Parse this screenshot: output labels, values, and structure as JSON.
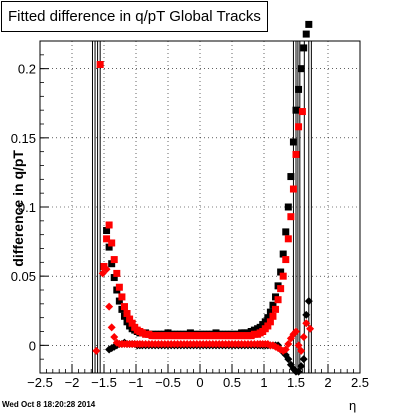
{
  "chart_data": {
    "type": "scatter",
    "title": "Fitted difference in q/pT  Global Tracks",
    "xlabel": "η",
    "ylabel": "difference in q/pT",
    "xlim": [
      -2.5,
      2.5
    ],
    "ylim": [
      -0.02,
      0.22
    ],
    "x_ticks": [
      "−2.5",
      "−2",
      "−1.5",
      "−1",
      "−0.5",
      "0",
      "0.5",
      "1",
      "1.5",
      "2",
      "2.5"
    ],
    "y_ticks": [
      "0",
      "0.05",
      "0.1",
      "0.15",
      "0.2"
    ],
    "grid": true,
    "series": [
      {
        "color": "#000000",
        "marker": "square",
        "x": [
          -1.46,
          -1.42,
          -1.38,
          -1.34,
          -1.3,
          -1.26,
          -1.22,
          -1.18,
          -1.14,
          -1.1,
          -1.06,
          -1.02,
          -0.98,
          -0.94,
          -0.9,
          -0.85,
          -0.8,
          -0.75,
          -0.7,
          -0.65,
          -0.6,
          -0.55,
          -0.5,
          -0.45,
          -0.4,
          -0.35,
          -0.3,
          -0.25,
          -0.2,
          -0.15,
          -0.1,
          -0.05,
          0.0,
          0.05,
          0.1,
          0.15,
          0.2,
          0.25,
          0.3,
          0.35,
          0.4,
          0.45,
          0.5,
          0.55,
          0.6,
          0.65,
          0.7,
          0.75,
          0.8,
          0.85,
          0.9,
          0.94,
          0.98,
          1.02,
          1.06,
          1.1,
          1.14,
          1.18,
          1.22,
          1.26,
          1.3,
          1.34,
          1.38,
          1.42,
          1.46,
          1.5,
          1.54,
          1.58,
          1.62,
          1.66,
          1.7
        ],
        "y": [
          0.083,
          0.071,
          0.059,
          0.049,
          0.04,
          0.032,
          0.026,
          0.021,
          0.017,
          0.014,
          0.012,
          0.011,
          0.01,
          0.009,
          0.009,
          0.009,
          0.008,
          0.008,
          0.008,
          0.008,
          0.008,
          0.008,
          0.009,
          0.008,
          0.008,
          0.008,
          0.008,
          0.008,
          0.008,
          0.009,
          0.008,
          0.008,
          0.008,
          0.008,
          0.008,
          0.008,
          0.008,
          0.009,
          0.008,
          0.008,
          0.008,
          0.008,
          0.008,
          0.008,
          0.008,
          0.009,
          0.009,
          0.009,
          0.01,
          0.011,
          0.012,
          0.013,
          0.015,
          0.017,
          0.02,
          0.024,
          0.029,
          0.035,
          0.043,
          0.053,
          0.066,
          0.082,
          0.1,
          0.122,
          0.147,
          0.17,
          0.185,
          0.2,
          0.215,
          0.225,
          0.232
        ]
      },
      {
        "color": "#000000",
        "marker": "diamond",
        "x": [
          -1.42,
          -1.38,
          -1.34,
          -1.3,
          -1.26,
          -1.22,
          -1.18,
          -1.14,
          -1.1,
          -1.06,
          -1.02,
          -0.98,
          -0.94,
          -0.9,
          -0.85,
          -0.8,
          -0.75,
          -0.7,
          -0.65,
          -0.6,
          -0.55,
          -0.5,
          -0.45,
          -0.4,
          -0.35,
          -0.3,
          -0.25,
          -0.2,
          -0.15,
          -0.1,
          -0.05,
          0.0,
          0.05,
          0.1,
          0.15,
          0.2,
          0.25,
          0.3,
          0.35,
          0.4,
          0.45,
          0.5,
          0.55,
          0.6,
          0.65,
          0.7,
          0.75,
          0.8,
          0.85,
          0.9,
          0.94,
          0.98,
          1.02,
          1.06,
          1.1,
          1.14,
          1.18,
          1.22,
          1.26,
          1.3,
          1.34,
          1.38,
          1.42,
          1.46,
          1.5,
          1.54,
          1.58,
          1.62,
          1.66,
          1.7
        ],
        "y": [
          -0.003,
          -0.002,
          -0.001,
          0.0,
          0.001,
          0.001,
          0.002,
          0.001,
          0.001,
          0.001,
          0.001,
          0.0,
          0.0,
          0.0,
          0.0,
          0.0,
          0.0,
          0.0,
          0.0,
          0.0,
          0.0,
          0.0,
          0.0,
          0.0,
          0.0,
          0.0,
          0.0,
          0.0,
          0.0,
          0.0,
          0.0,
          0.0,
          0.0,
          0.0,
          0.0,
          0.0,
          0.0,
          0.0,
          0.0,
          0.0,
          0.0,
          0.0,
          0.0,
          0.0,
          0.0,
          0.0,
          0.0,
          0.0,
          0.0,
          0.0,
          0.0,
          0.0,
          0.0,
          0.0,
          0.0,
          0.0,
          0.0,
          0.0,
          -0.003,
          -0.005,
          -0.007,
          -0.01,
          -0.014,
          -0.017,
          -0.019,
          -0.019,
          -0.015,
          -0.01,
          0.022,
          0.032
        ]
      },
      {
        "color": "#ff0000",
        "marker": "square",
        "x": [
          -1.56,
          -1.5,
          -1.46,
          -1.42,
          -1.38,
          -1.34,
          -1.3,
          -1.26,
          -1.22,
          -1.18,
          -1.14,
          -1.1,
          -1.06,
          -1.02,
          -0.98,
          -0.94,
          -0.9,
          -0.85,
          -0.8,
          -0.75,
          -0.7,
          -0.65,
          -0.6,
          -0.55,
          -0.5,
          -0.45,
          -0.4,
          -0.35,
          -0.3,
          -0.25,
          -0.2,
          -0.15,
          -0.1,
          -0.05,
          0.0,
          0.05,
          0.1,
          0.15,
          0.2,
          0.25,
          0.3,
          0.35,
          0.4,
          0.45,
          0.5,
          0.55,
          0.6,
          0.65,
          0.7,
          0.75,
          0.8,
          0.85,
          0.9,
          0.94,
          0.98,
          1.02,
          1.06,
          1.1,
          1.14,
          1.18,
          1.22,
          1.26,
          1.3,
          1.34,
          1.38,
          1.42,
          1.46,
          1.5,
          1.54,
          1.6
        ],
        "y": [
          0.203,
          0.057,
          0.077,
          0.087,
          0.074,
          0.062,
          0.052,
          0.042,
          0.035,
          0.028,
          0.023,
          0.019,
          0.016,
          0.013,
          0.011,
          0.01,
          0.009,
          0.008,
          0.008,
          0.007,
          0.007,
          0.007,
          0.007,
          0.007,
          0.007,
          0.007,
          0.007,
          0.007,
          0.007,
          0.007,
          0.007,
          0.007,
          0.007,
          0.007,
          0.007,
          0.007,
          0.007,
          0.007,
          0.007,
          0.007,
          0.007,
          0.007,
          0.007,
          0.007,
          0.007,
          0.007,
          0.007,
          0.007,
          0.007,
          0.007,
          0.007,
          0.008,
          0.008,
          0.009,
          0.01,
          0.012,
          0.014,
          0.017,
          0.021,
          0.026,
          0.033,
          0.041,
          0.05,
          0.062,
          0.077,
          0.093,
          0.113,
          0.138,
          0.158,
          0.169
        ]
      },
      {
        "color": "#ff0000",
        "marker": "diamond",
        "x": [
          -1.62,
          -1.52,
          -1.46,
          -1.42,
          -1.38,
          -1.34,
          -1.3,
          -1.26,
          -1.22,
          -1.18,
          -1.14,
          -1.1,
          -1.06,
          -1.02,
          -0.98,
          -0.94,
          -0.9,
          -0.85,
          -0.8,
          -0.75,
          -0.7,
          -0.65,
          -0.6,
          -0.55,
          -0.5,
          -0.45,
          -0.4,
          -0.35,
          -0.3,
          -0.25,
          -0.2,
          -0.15,
          -0.1,
          -0.05,
          0.0,
          0.05,
          0.1,
          0.15,
          0.2,
          0.25,
          0.3,
          0.35,
          0.4,
          0.45,
          0.5,
          0.55,
          0.6,
          0.65,
          0.7,
          0.75,
          0.8,
          0.85,
          0.9,
          0.94,
          0.98,
          1.02,
          1.06,
          1.1,
          1.14,
          1.18,
          1.22,
          1.26,
          1.3,
          1.34,
          1.38,
          1.42,
          1.46,
          1.5,
          1.54,
          1.58,
          1.62,
          1.66,
          1.72
        ],
        "y": [
          -0.004,
          0.052,
          0.055,
          0.028,
          0.013,
          0.006,
          0.002,
          0.001,
          0.001,
          0.001,
          0.001,
          0.001,
          0.001,
          0.001,
          0.001,
          0.001,
          0.001,
          0.001,
          0.001,
          0.001,
          0.001,
          0.001,
          0.001,
          0.001,
          0.001,
          0.001,
          0.001,
          0.001,
          0.001,
          0.001,
          0.001,
          0.001,
          0.001,
          0.001,
          0.001,
          0.001,
          0.001,
          0.001,
          0.001,
          0.001,
          0.001,
          0.001,
          0.001,
          0.001,
          0.001,
          0.001,
          0.001,
          0.001,
          0.001,
          0.001,
          0.001,
          0.001,
          0.001,
          0.001,
          0.001,
          0.001,
          0.001,
          0.0,
          0.0,
          -0.001,
          -0.002,
          -0.003,
          -0.004,
          -0.003,
          0.001,
          0.005,
          0.008,
          0.01,
          0.0,
          -0.004,
          0.006,
          0.016,
          0.012
        ]
      }
    ],
    "error_bar_lines": [
      {
        "x": -1.68,
        "y_low": -0.02,
        "y_high": 0.22
      },
      {
        "x": -1.64,
        "y_low": -0.02,
        "y_high": 0.22
      },
      {
        "x": -1.6,
        "y_low": -0.02,
        "y_high": 0.22
      },
      {
        "x": -1.56,
        "y_low": -0.02,
        "y_high": 0.22
      },
      {
        "x": 1.46,
        "y_low": -0.02,
        "y_high": 0.22
      },
      {
        "x": 1.5,
        "y_low": -0.02,
        "y_high": 0.22
      },
      {
        "x": 1.53,
        "y_low": -0.02,
        "y_high": 0.22
      },
      {
        "x": 1.56,
        "y_low": -0.02,
        "y_high": 0.22
      },
      {
        "x": 1.63,
        "y_low": -0.02,
        "y_high": 0.22
      },
      {
        "x": 1.7,
        "y_low": -0.02,
        "y_high": 0.22
      },
      {
        "x": 1.74,
        "y_low": -0.02,
        "y_high": 0.22
      }
    ]
  },
  "footer": {
    "timestamp": "Wed Oct  8 18:20:28 2014"
  }
}
